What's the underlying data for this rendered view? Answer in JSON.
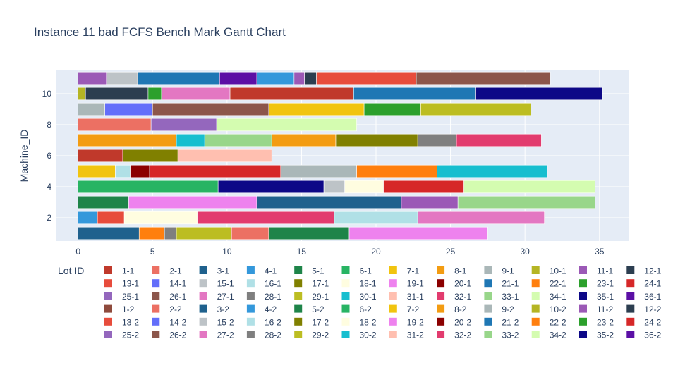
{
  "chart_data": {
    "type": "gantt",
    "title": "Instance 11 bad FCFS Bench Mark Gantt Chart",
    "xlabel": "",
    "ylabel": "Machine_ID",
    "xlim": [
      -1.5,
      37
    ],
    "ylim": [
      0.5,
      11.5
    ],
    "x_ticks": [
      0,
      5,
      10,
      15,
      20,
      25,
      30,
      35
    ],
    "y_ticks": [
      2,
      4,
      6,
      8,
      10
    ],
    "grid": true,
    "legend_title": "Lot ID",
    "legend_position": "bottom",
    "lots": [
      {
        "id": "1-1",
        "color": "#c0392b"
      },
      {
        "id": "2-1",
        "color": "#ec7063"
      },
      {
        "id": "3-1",
        "color": "#1f618d"
      },
      {
        "id": "4-1",
        "color": "#3498db"
      },
      {
        "id": "5-1",
        "color": "#1e8449"
      },
      {
        "id": "6-1",
        "color": "#28b463"
      },
      {
        "id": "7-1",
        "color": "#f1c40f"
      },
      {
        "id": "8-1",
        "color": "#f39c12"
      },
      {
        "id": "9-1",
        "color": "#aab7b8"
      },
      {
        "id": "10-1",
        "color": "#b5b524"
      },
      {
        "id": "11-1",
        "color": "#9b59b6"
      },
      {
        "id": "12-1",
        "color": "#2c3e50"
      },
      {
        "id": "13-1",
        "color": "#e74c3c"
      },
      {
        "id": "14-1",
        "color": "#636efa"
      },
      {
        "id": "15-1",
        "color": "#bdc3c7"
      },
      {
        "id": "16-1",
        "color": "#b0e0e6"
      },
      {
        "id": "17-1",
        "color": "#808000"
      },
      {
        "id": "18-1",
        "color": "#fffde0"
      },
      {
        "id": "19-1",
        "color": "#ee82ee"
      },
      {
        "id": "20-1",
        "color": "#8b0000"
      },
      {
        "id": "21-1",
        "color": "#1f77b4"
      },
      {
        "id": "22-1",
        "color": "#ff7f0e"
      },
      {
        "id": "23-1",
        "color": "#2ca02c"
      },
      {
        "id": "24-1",
        "color": "#d62728"
      },
      {
        "id": "25-1",
        "color": "#9467bd"
      },
      {
        "id": "26-1",
        "color": "#8c564b"
      },
      {
        "id": "27-1",
        "color": "#e377c2"
      },
      {
        "id": "28-1",
        "color": "#7f7f7f"
      },
      {
        "id": "29-1",
        "color": "#bcbd22"
      },
      {
        "id": "30-1",
        "color": "#17becf"
      },
      {
        "id": "31-1",
        "color": "#ffbfb0"
      },
      {
        "id": "32-1",
        "color": "#e23b6e"
      },
      {
        "id": "33-1",
        "color": "#98d68a"
      },
      {
        "id": "34-1",
        "color": "#d4fcb0"
      },
      {
        "id": "35-1",
        "color": "#0d0887"
      },
      {
        "id": "36-1",
        "color": "#5b0fa5"
      },
      {
        "id": "1-2",
        "color": "#8e4a3c"
      },
      {
        "id": "2-2",
        "color": "#ec7063"
      },
      {
        "id": "3-2",
        "color": "#1f618d"
      },
      {
        "id": "4-2",
        "color": "#3498db"
      },
      {
        "id": "5-2",
        "color": "#1e8449"
      },
      {
        "id": "6-2",
        "color": "#28b463"
      },
      {
        "id": "7-2",
        "color": "#f1c40f"
      },
      {
        "id": "8-2",
        "color": "#f39c12"
      },
      {
        "id": "9-2",
        "color": "#aab7b8"
      },
      {
        "id": "10-2",
        "color": "#b5b524"
      },
      {
        "id": "11-2",
        "color": "#9b59b6"
      },
      {
        "id": "12-2",
        "color": "#2c3e50"
      },
      {
        "id": "13-2",
        "color": "#e74c3c"
      },
      {
        "id": "14-2",
        "color": "#636efa"
      },
      {
        "id": "15-2",
        "color": "#bdc3c7"
      },
      {
        "id": "16-2",
        "color": "#b0e0e6"
      },
      {
        "id": "17-2",
        "color": "#808000"
      },
      {
        "id": "18-2",
        "color": "#fffde0"
      },
      {
        "id": "19-2",
        "color": "#ee82ee"
      },
      {
        "id": "20-2",
        "color": "#8b0000"
      },
      {
        "id": "21-2",
        "color": "#1f77b4"
      },
      {
        "id": "22-2",
        "color": "#ff7f0e"
      },
      {
        "id": "23-2",
        "color": "#2ca02c"
      },
      {
        "id": "24-2",
        "color": "#d62728"
      },
      {
        "id": "25-2",
        "color": "#9467bd"
      },
      {
        "id": "26-2",
        "color": "#8c564b"
      },
      {
        "id": "27-2",
        "color": "#e377c2"
      },
      {
        "id": "28-2",
        "color": "#7f7f7f"
      },
      {
        "id": "29-2",
        "color": "#bcbd22"
      },
      {
        "id": "30-2",
        "color": "#17becf"
      },
      {
        "id": "31-2",
        "color": "#ffbfb0"
      },
      {
        "id": "32-2",
        "color": "#e23b6e"
      },
      {
        "id": "33-2",
        "color": "#98d68a"
      },
      {
        "id": "34-2",
        "color": "#d4fcb0"
      },
      {
        "id": "35-2",
        "color": "#0d0887"
      },
      {
        "id": "36-2",
        "color": "#5b0fa5"
      }
    ],
    "tasks": [
      {
        "machine": 1,
        "start": 0.0,
        "end": 4.1,
        "color": "#1f618d"
      },
      {
        "machine": 1,
        "start": 4.1,
        "end": 5.8,
        "color": "#ff7f0e"
      },
      {
        "machine": 1,
        "start": 5.8,
        "end": 6.6,
        "color": "#7f7f7f"
      },
      {
        "machine": 1,
        "start": 6.6,
        "end": 10.3,
        "color": "#bcbd22"
      },
      {
        "machine": 1,
        "start": 10.3,
        "end": 12.8,
        "color": "#ec7063"
      },
      {
        "machine": 1,
        "start": 12.8,
        "end": 18.2,
        "color": "#1e8449"
      },
      {
        "machine": 1,
        "start": 18.2,
        "end": 27.5,
        "color": "#ee82ee"
      },
      {
        "machine": 2,
        "start": 0.0,
        "end": 1.3,
        "color": "#3498db"
      },
      {
        "machine": 2,
        "start": 1.3,
        "end": 3.1,
        "color": "#e74c3c"
      },
      {
        "machine": 2,
        "start": 3.1,
        "end": 8.0,
        "color": "#fffde0"
      },
      {
        "machine": 2,
        "start": 8.0,
        "end": 17.2,
        "color": "#e23b6e"
      },
      {
        "machine": 2,
        "start": 17.2,
        "end": 22.8,
        "color": "#b0e0e6"
      },
      {
        "machine": 2,
        "start": 22.8,
        "end": 31.3,
        "color": "#e377c2"
      },
      {
        "machine": 3,
        "start": 0.0,
        "end": 3.4,
        "color": "#1e8449"
      },
      {
        "machine": 3,
        "start": 3.4,
        "end": 12.0,
        "color": "#ee82ee"
      },
      {
        "machine": 3,
        "start": 12.0,
        "end": 21.7,
        "color": "#1f618d"
      },
      {
        "machine": 3,
        "start": 21.7,
        "end": 25.5,
        "color": "#9b59b6"
      },
      {
        "machine": 3,
        "start": 25.5,
        "end": 34.7,
        "color": "#98d68a"
      },
      {
        "machine": 4,
        "start": 0.0,
        "end": 9.4,
        "color": "#28b463"
      },
      {
        "machine": 4,
        "start": 9.4,
        "end": 16.5,
        "color": "#0d0887"
      },
      {
        "machine": 4,
        "start": 16.5,
        "end": 17.9,
        "color": "#bdc3c7"
      },
      {
        "machine": 4,
        "start": 17.9,
        "end": 20.5,
        "color": "#fffde0"
      },
      {
        "machine": 4,
        "start": 20.5,
        "end": 25.9,
        "color": "#d62728"
      },
      {
        "machine": 4,
        "start": 25.9,
        "end": 34.7,
        "color": "#d4fcb0"
      },
      {
        "machine": 5,
        "start": 0.0,
        "end": 2.5,
        "color": "#f1c40f"
      },
      {
        "machine": 5,
        "start": 2.5,
        "end": 3.5,
        "color": "#b0e0e6"
      },
      {
        "machine": 5,
        "start": 3.5,
        "end": 4.8,
        "color": "#8b0000"
      },
      {
        "machine": 5,
        "start": 4.8,
        "end": 13.6,
        "color": "#d62728"
      },
      {
        "machine": 5,
        "start": 13.6,
        "end": 18.7,
        "color": "#aab7b8"
      },
      {
        "machine": 5,
        "start": 18.7,
        "end": 24.1,
        "color": "#ff7f0e"
      },
      {
        "machine": 5,
        "start": 24.1,
        "end": 31.5,
        "color": "#17becf"
      },
      {
        "machine": 6,
        "start": 0.0,
        "end": 3.0,
        "color": "#c0392b"
      },
      {
        "machine": 6,
        "start": 3.0,
        "end": 6.7,
        "color": "#808000"
      },
      {
        "machine": 6,
        "start": 6.7,
        "end": 13.0,
        "color": "#ffbfb0"
      },
      {
        "machine": 7,
        "start": 0.0,
        "end": 6.6,
        "color": "#f39c12"
      },
      {
        "machine": 7,
        "start": 6.6,
        "end": 8.5,
        "color": "#17becf"
      },
      {
        "machine": 7,
        "start": 8.5,
        "end": 13.0,
        "color": "#98d68a"
      },
      {
        "machine": 7,
        "start": 13.0,
        "end": 17.3,
        "color": "#f39c12"
      },
      {
        "machine": 7,
        "start": 17.3,
        "end": 22.8,
        "color": "#808000"
      },
      {
        "machine": 7,
        "start": 22.8,
        "end": 25.4,
        "color": "#7f7f7f"
      },
      {
        "machine": 7,
        "start": 25.4,
        "end": 31.1,
        "color": "#e23b6e"
      },
      {
        "machine": 8,
        "start": 0.0,
        "end": 4.9,
        "color": "#ec7063"
      },
      {
        "machine": 8,
        "start": 4.9,
        "end": 9.3,
        "color": "#9467bd"
      },
      {
        "machine": 8,
        "start": 9.3,
        "end": 18.7,
        "color": "#d4fcb0"
      },
      {
        "machine": 9,
        "start": 0.0,
        "end": 1.8,
        "color": "#aab7b8"
      },
      {
        "machine": 9,
        "start": 1.8,
        "end": 5.0,
        "color": "#636efa"
      },
      {
        "machine": 9,
        "start": 5.0,
        "end": 12.8,
        "color": "#8c564b"
      },
      {
        "machine": 9,
        "start": 12.8,
        "end": 19.2,
        "color": "#f1c40f"
      },
      {
        "machine": 9,
        "start": 19.2,
        "end": 23.0,
        "color": "#2ca02c"
      },
      {
        "machine": 9,
        "start": 23.0,
        "end": 30.4,
        "color": "#bcbd22"
      },
      {
        "machine": 10,
        "start": 0.0,
        "end": 0.5,
        "color": "#b5b524"
      },
      {
        "machine": 10,
        "start": 0.5,
        "end": 4.7,
        "color": "#2c3e50"
      },
      {
        "machine": 10,
        "start": 4.7,
        "end": 5.6,
        "color": "#2ca02c"
      },
      {
        "machine": 10,
        "start": 5.6,
        "end": 10.2,
        "color": "#e377c2"
      },
      {
        "machine": 10,
        "start": 10.2,
        "end": 18.5,
        "color": "#c0392b"
      },
      {
        "machine": 10,
        "start": 18.5,
        "end": 26.7,
        "color": "#1f77b4"
      },
      {
        "machine": 10,
        "start": 26.7,
        "end": 35.2,
        "color": "#0d0887"
      },
      {
        "machine": 11,
        "start": 0.0,
        "end": 1.9,
        "color": "#9b59b6"
      },
      {
        "machine": 11,
        "start": 1.9,
        "end": 4.0,
        "color": "#bdc3c7"
      },
      {
        "machine": 11,
        "start": 4.0,
        "end": 9.5,
        "color": "#1f77b4"
      },
      {
        "machine": 11,
        "start": 9.5,
        "end": 12.0,
        "color": "#5b0fa5"
      },
      {
        "machine": 11,
        "start": 12.0,
        "end": 14.5,
        "color": "#3498db"
      },
      {
        "machine": 11,
        "start": 14.5,
        "end": 15.2,
        "color": "#9b59b6"
      },
      {
        "machine": 11,
        "start": 15.2,
        "end": 16.0,
        "color": "#2c3e50"
      },
      {
        "machine": 11,
        "start": 16.0,
        "end": 22.7,
        "color": "#e74c3c"
      },
      {
        "machine": 11,
        "start": 22.7,
        "end": 31.7,
        "color": "#8c564b"
      }
    ]
  }
}
